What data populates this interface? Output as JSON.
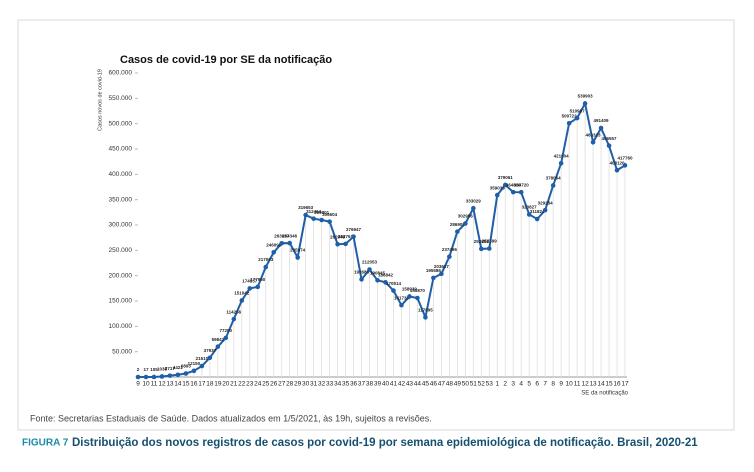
{
  "chart_data": {
    "type": "line",
    "title": "Casos de covid-19 por SE da notificação",
    "y_label": "Casos novos de covid-19",
    "x_label": "SE da notificação",
    "source": "Fonte: Secretarias Estaduais de Saúde. Dados atualizados em 1/5/2021, às 19h, sujeitos a revisões.",
    "figure_label": "FIGURA 7",
    "caption": "Distribuição dos novos registros de casos por covid-19 por semana epidemiológica de notificação. Brasil, 2020-21",
    "categories": [
      "9",
      "10",
      "11",
      "12",
      "13",
      "14",
      "15",
      "16",
      "17",
      "18",
      "19",
      "20",
      "21",
      "22",
      "23",
      "24",
      "25",
      "26",
      "27",
      "28",
      "29",
      "30",
      "31",
      "32",
      "33",
      "34",
      "35",
      "36",
      "37",
      "38",
      "39",
      "40",
      "41",
      "42",
      "43",
      "44",
      "45",
      "46",
      "47",
      "48",
      "49",
      "50",
      "51",
      "52",
      "53",
      "1",
      "2",
      "3",
      "4",
      "5",
      "6",
      "7",
      "8",
      "9",
      "10",
      "11",
      "12",
      "13",
      "14",
      "15",
      "16",
      "17"
    ],
    "series": [
      {
        "name": "Casos",
        "color": "#1f5fa8",
        "values": [
          2,
          17,
          105,
          1038,
          2717,
          4421,
          6893,
          12150,
          21610,
          37937,
          59842,
          77200,
          114256,
          151042,
          174837,
          177960,
          217063,
          246098,
          263937,
          264346,
          235974,
          319653,
          312464,
          309801,
          306604,
          262049,
          262761,
          276947,
          192685,
          212053,
          190845,
          186842,
          170514,
          141738,
          158939,
          155870,
          117895,
          195586,
          203627,
          237496,
          286909,
          302956,
          333029,
          252801,
          253599,
          359035,
          379061,
          364810,
          364720,
          320827,
          311824,
          329284,
          378064,
          421804,
          500722,
          510987,
          539903,
          463323,
          491409,
          456557,
          408120,
          417760
        ]
      }
    ],
    "ylim": [
      0,
      600000
    ],
    "yticks": [
      {
        "value": 50000,
        "label": "50.000"
      },
      {
        "value": 100000,
        "label": "100.000"
      },
      {
        "value": 150000,
        "label": "150.000"
      },
      {
        "value": 200000,
        "label": "200.000"
      },
      {
        "value": 250000,
        "label": "250.000"
      },
      {
        "value": 300000,
        "label": "300.000"
      },
      {
        "value": 350000,
        "label": "350.000"
      },
      {
        "value": 400000,
        "label": "400.000"
      },
      {
        "value": 450000,
        "label": "450.000"
      },
      {
        "value": 500000,
        "label": "500.000"
      },
      {
        "value": 550000,
        "label": "550.000"
      },
      {
        "value": 600000,
        "label": "600.000"
      }
    ]
  }
}
